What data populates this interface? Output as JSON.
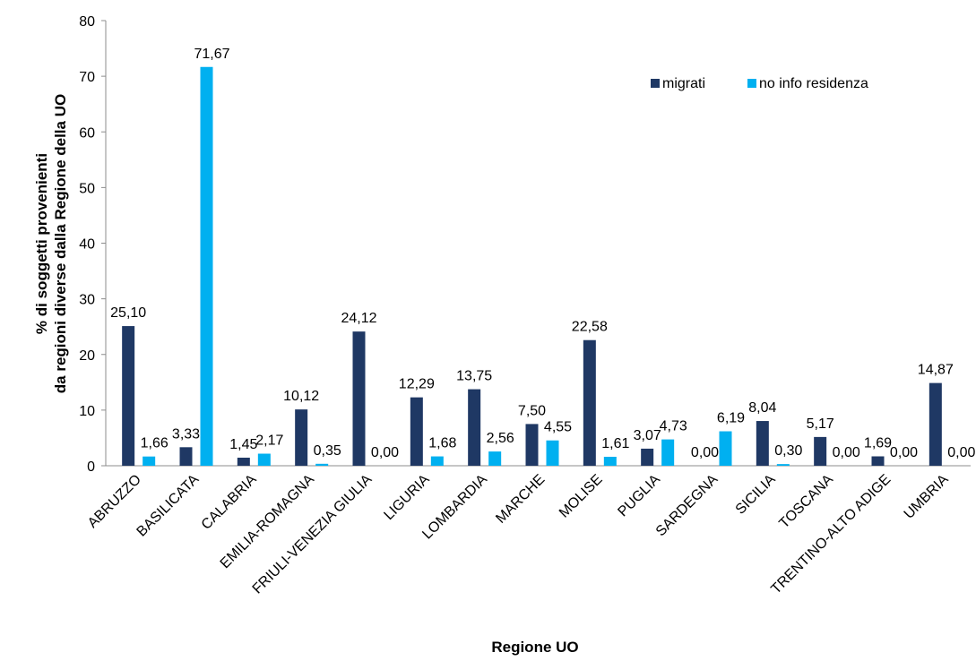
{
  "chart_data": {
    "type": "bar",
    "title": "",
    "xlabel": "Regione UO",
    "ylabel_lines": [
      "% di soggetti provenienti",
      "da regioni diverse dalla Regione della UO"
    ],
    "ylim": [
      0,
      80
    ],
    "yticks": [
      "0",
      "10",
      "20",
      "30",
      "40",
      "50",
      "60",
      "70",
      "80"
    ],
    "grid": false,
    "legend_position": "top-right",
    "categories": [
      "ABRUZZO",
      "BASILICATA",
      "CALABRIA",
      "EMILIA-ROMAGNA",
      "FRIULI-VENEZIA GIULIA",
      "LIGURIA",
      "LOMBARDIA",
      "MARCHE",
      "MOLISE",
      "PUGLIA",
      "SARDEGNA",
      "SICILIA",
      "TOSCANA",
      "TRENTINO-ALTO ADIGE",
      "UMBRIA"
    ],
    "series": [
      {
        "name": "migrati",
        "color": "#1f3864",
        "values": [
          25.1,
          3.33,
          1.45,
          10.12,
          24.12,
          12.29,
          13.75,
          7.5,
          22.58,
          3.07,
          0.0,
          8.04,
          5.17,
          1.69,
          14.87
        ],
        "labels": [
          "25,10",
          "3,33",
          "1,45",
          "10,12",
          "24,12",
          "12,29",
          "13,75",
          "7,50",
          "22,58",
          "3,07",
          "0,00",
          "8,04",
          "5,17",
          "1,69",
          "14,87"
        ]
      },
      {
        "name": "no info residenza",
        "color": "#00b0f0",
        "values": [
          1.66,
          71.67,
          2.17,
          0.35,
          0.0,
          1.68,
          2.56,
          4.55,
          1.61,
          4.73,
          6.19,
          0.3,
          0.0,
          0.0,
          0.0
        ],
        "labels": [
          "1,66",
          "71,67",
          "2,17",
          "0,35",
          "0,00",
          "1,68",
          "2,56",
          "4,55",
          "1,61",
          "4,73",
          "6,19",
          "0,30",
          "0,00",
          "0,00",
          "0,00"
        ]
      }
    ]
  }
}
